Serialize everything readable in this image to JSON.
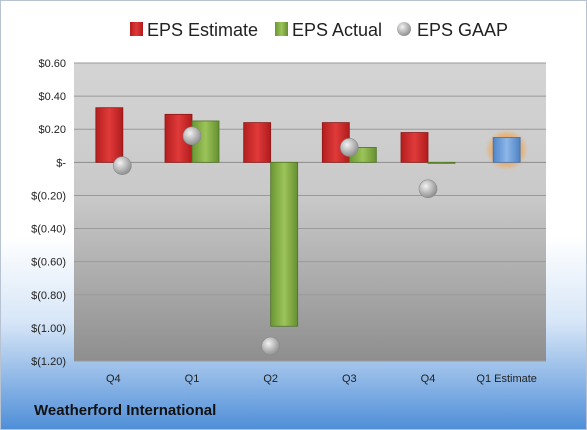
{
  "company": "Weatherford International",
  "chart_data": {
    "type": "bar",
    "title": "",
    "xlabel": "",
    "ylabel": "",
    "categories": [
      "Q4",
      "Q1",
      "Q2",
      "Q3",
      "Q4",
      "Q1 Estimate"
    ],
    "ylim": [
      -1.2,
      0.6
    ],
    "yticks": [
      0.6,
      0.4,
      0.2,
      0,
      -0.2,
      -0.4,
      -0.6,
      -0.8,
      -1.0,
      -1.2
    ],
    "ytick_labels": [
      "$0.60",
      "$0.40",
      "$0.20",
      "$-",
      "$(0.20)",
      "$(0.40)",
      "$(0.60)",
      "$(0.80)",
      "$(1.00)",
      "$(1.20)"
    ],
    "grid": true,
    "legend_position": "top",
    "series": [
      {
        "name": "EPS Estimate",
        "kind": "bar",
        "color": "#d62728",
        "values": [
          0.33,
          0.29,
          0.24,
          0.24,
          0.18,
          null
        ]
      },
      {
        "name": "EPS Actual",
        "kind": "bar",
        "color": "#7aa63a",
        "values": [
          null,
          0.25,
          -0.99,
          0.09,
          0.0,
          null
        ]
      },
      {
        "name": "EPS GAAP",
        "kind": "marker",
        "color": "#a6a6a6",
        "values": [
          -0.02,
          0.16,
          -1.11,
          0.09,
          -0.16,
          null
        ]
      },
      {
        "name": "Q1 Estimate",
        "kind": "bar",
        "color": "#6f9fd8",
        "highlight": "#f5a040",
        "values": [
          null,
          null,
          null,
          null,
          null,
          0.15
        ]
      }
    ]
  }
}
